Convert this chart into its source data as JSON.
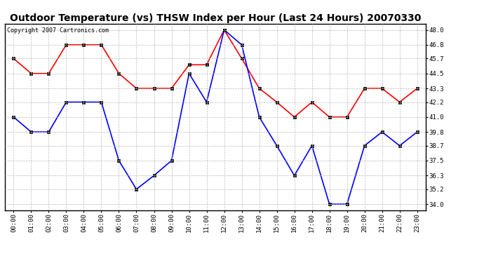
{
  "title": "Outdoor Temperature (vs) THSW Index per Hour (Last 24 Hours) 20070330",
  "copyright": "Copyright 2007 Cartronics.com",
  "hours": [
    "00:00",
    "01:00",
    "02:00",
    "03:00",
    "04:00",
    "05:00",
    "06:00",
    "07:00",
    "08:00",
    "09:00",
    "10:00",
    "11:00",
    "12:00",
    "13:00",
    "14:00",
    "15:00",
    "16:00",
    "17:00",
    "18:00",
    "19:00",
    "20:00",
    "21:00",
    "22:00",
    "23:00"
  ],
  "red_data": [
    45.7,
    44.5,
    44.5,
    46.8,
    46.8,
    46.8,
    44.5,
    43.3,
    43.3,
    43.3,
    45.2,
    45.2,
    48.0,
    45.7,
    43.3,
    42.2,
    41.0,
    42.2,
    41.0,
    41.0,
    43.3,
    43.3,
    42.2,
    43.3
  ],
  "blue_data": [
    41.0,
    39.8,
    39.8,
    42.2,
    42.2,
    42.2,
    37.5,
    35.2,
    36.3,
    37.5,
    44.5,
    42.2,
    48.0,
    46.8,
    41.0,
    38.7,
    36.3,
    38.7,
    34.0,
    34.0,
    38.7,
    39.8,
    38.7,
    39.8
  ],
  "ylim_min": 33.5,
  "ylim_max": 48.5,
  "yticks": [
    34.0,
    35.2,
    36.3,
    37.5,
    38.7,
    39.8,
    41.0,
    42.2,
    43.3,
    44.5,
    45.7,
    46.8,
    48.0
  ],
  "red_color": "#FF0000",
  "blue_color": "#0000FF",
  "bg_color": "#FFFFFF",
  "grid_color": "#BBBBBB",
  "title_fontsize": 10,
  "tick_fontsize": 6.5,
  "copyright_fontsize": 6
}
